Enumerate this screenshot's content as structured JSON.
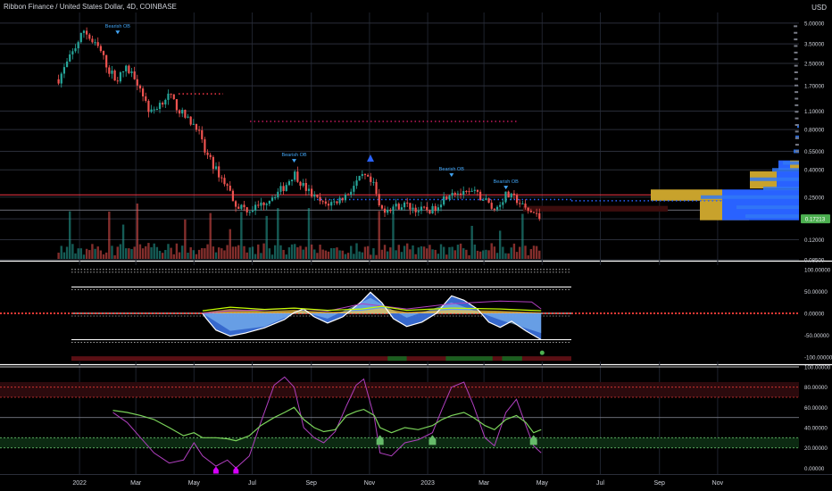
{
  "header": {
    "title": "Ribbon Finance / United States Dollar, 4D, COINBASE",
    "currency": "USD"
  },
  "colors": {
    "bull": "#26a69a",
    "bear": "#ef5350",
    "accent_blue": "#2962ff",
    "zone_gold": "#c8a22c",
    "price_label": "#4caf50",
    "rsi_purple": "#b03fbf",
    "rsi_green": "#7bd35a",
    "red_line": "#f23645"
  },
  "chart_data": [
    {
      "type": "candlestick",
      "title": "Ribbon Finance / United States Dollar, 4D, COINBASE",
      "y_scale": "log",
      "ylim": [
        0.085,
        6.0
      ],
      "y_ticks": [
        "5.00000",
        "3.50000",
        "2.50000",
        "1.70000",
        "1.10000",
        "0.80000",
        "0.55000",
        "0.40000",
        "0.25000",
        "0.12000",
        "0.08500"
      ],
      "x_ticks": [
        "2022",
        "Mar",
        "May",
        "Jul",
        "Sep",
        "Nov",
        "2023",
        "Mar",
        "May",
        "Jul",
        "Sep",
        "Nov"
      ],
      "last_price_label": "0.17213",
      "annotations": [
        "Bearish OB",
        "Bearish OB",
        "Bearish OB",
        "Bearish OB"
      ],
      "close_path": [
        [
          "2021-12-10",
          1.9
        ],
        [
          "2021-12-20",
          2.6
        ],
        [
          "2022-01-01",
          3.8
        ],
        [
          "2022-01-06",
          4.5
        ],
        [
          "2022-01-14",
          3.6
        ],
        [
          "2022-01-22",
          3.2
        ],
        [
          "2022-02-01",
          2.2
        ],
        [
          "2022-02-10",
          1.9
        ],
        [
          "2022-02-18",
          2.3
        ],
        [
          "2022-02-28",
          2.0
        ],
        [
          "2022-03-08",
          1.5
        ],
        [
          "2022-03-16",
          1.05
        ],
        [
          "2022-03-28",
          1.3
        ],
        [
          "2022-04-05",
          1.45
        ],
        [
          "2022-04-14",
          1.15
        ],
        [
          "2022-04-24",
          0.95
        ],
        [
          "2022-05-04",
          0.85
        ],
        [
          "2022-05-12",
          0.55
        ],
        [
          "2022-05-24",
          0.4
        ],
        [
          "2022-06-05",
          0.3
        ],
        [
          "2022-06-14",
          0.22
        ],
        [
          "2022-06-28",
          0.2
        ],
        [
          "2022-07-10",
          0.22
        ],
        [
          "2022-07-24",
          0.26
        ],
        [
          "2022-08-04",
          0.3
        ],
        [
          "2022-08-14",
          0.38
        ],
        [
          "2022-08-24",
          0.3
        ],
        [
          "2022-09-04",
          0.25
        ],
        [
          "2022-09-14",
          0.22
        ],
        [
          "2022-09-26",
          0.23
        ],
        [
          "2022-10-08",
          0.26
        ],
        [
          "2022-10-18",
          0.32
        ],
        [
          "2022-10-26",
          0.36
        ],
        [
          "2022-11-06",
          0.3
        ],
        [
          "2022-11-12",
          0.2
        ],
        [
          "2022-11-24",
          0.21
        ],
        [
          "2022-12-08",
          0.22
        ],
        [
          "2022-12-22",
          0.2
        ],
        [
          "2023-01-06",
          0.2
        ],
        [
          "2023-01-16",
          0.24
        ],
        [
          "2023-01-26",
          0.28
        ],
        [
          "2023-02-08",
          0.26
        ],
        [
          "2023-02-18",
          0.27
        ],
        [
          "2023-03-02",
          0.24
        ],
        [
          "2023-03-12",
          0.2
        ],
        [
          "2023-03-24",
          0.26
        ],
        [
          "2023-04-04",
          0.24
        ],
        [
          "2023-04-14",
          0.2
        ],
        [
          "2023-04-22",
          0.19
        ],
        [
          "2023-04-30",
          0.17
        ]
      ],
      "price_lines": [
        0.26,
        0.2
      ],
      "volume_profile_bins": [
        {
          "price": 0.85,
          "len": 2
        },
        {
          "price": 0.7,
          "len": 4
        },
        {
          "price": 0.55,
          "len": 6
        },
        {
          "price": 0.45,
          "len": 18
        },
        {
          "price": 0.4,
          "len": 30
        },
        {
          "price": 0.34,
          "len": 55
        },
        {
          "price": 0.29,
          "len": 40
        },
        {
          "price": 0.25,
          "len": 110
        },
        {
          "price": 0.21,
          "len": 70
        },
        {
          "price": 0.18,
          "len": 60
        }
      ]
    },
    {
      "type": "line",
      "title": "",
      "ylim": [
        -110,
        110
      ],
      "y_ticks": [
        "100.00000",
        "50.00000",
        "0.00000",
        "-50.00000",
        "-100.00000"
      ],
      "levels": [
        100,
        60,
        0,
        -60
      ],
      "wave": [
        [
          "2022-05-10",
          0
        ],
        [
          "2022-05-14",
          -12
        ],
        [
          "2022-05-24",
          -38
        ],
        [
          "2022-06-08",
          -52
        ],
        [
          "2022-06-24",
          -45
        ],
        [
          "2022-07-14",
          -33
        ],
        [
          "2022-08-04",
          -14
        ],
        [
          "2022-08-14",
          2
        ],
        [
          "2022-08-24",
          10
        ],
        [
          "2022-09-04",
          -8
        ],
        [
          "2022-09-18",
          -22
        ],
        [
          "2022-10-04",
          -8
        ],
        [
          "2022-10-24",
          28
        ],
        [
          "2022-11-02",
          48
        ],
        [
          "2022-11-14",
          24
        ],
        [
          "2022-11-26",
          -12
        ],
        [
          "2022-12-10",
          -30
        ],
        [
          "2022-12-26",
          -20
        ],
        [
          "2023-01-10",
          0
        ],
        [
          "2023-01-26",
          40
        ],
        [
          "2023-02-08",
          30
        ],
        [
          "2023-02-22",
          10
        ],
        [
          "2023-03-06",
          -20
        ],
        [
          "2023-03-18",
          -32
        ],
        [
          "2023-03-30",
          -18
        ],
        [
          "2023-04-14",
          -40
        ],
        [
          "2023-04-30",
          -60
        ]
      ],
      "signal": [
        [
          "2022-05-10",
          0
        ],
        [
          "2022-06-08",
          -40
        ],
        [
          "2022-07-14",
          -30
        ],
        [
          "2022-08-20",
          5
        ],
        [
          "2022-09-18",
          -12
        ],
        [
          "2022-11-02",
          35
        ],
        [
          "2022-12-10",
          -10
        ],
        [
          "2023-01-26",
          25
        ],
        [
          "2023-03-18",
          -15
        ],
        [
          "2023-04-30",
          -45
        ]
      ],
      "mf_line": [
        [
          "2022-05-10",
          2
        ],
        [
          "2022-06-08",
          10
        ],
        [
          "2022-07-14",
          5
        ],
        [
          "2022-08-14",
          8
        ],
        [
          "2022-09-18",
          3
        ],
        [
          "2022-10-24",
          6
        ],
        [
          "2022-11-14",
          12
        ],
        [
          "2022-12-10",
          3
        ],
        [
          "2023-01-26",
          8
        ],
        [
          "2023-03-18",
          6
        ],
        [
          "2023-04-30",
          2
        ]
      ],
      "purple_line": [
        [
          "2022-05-10",
          0
        ],
        [
          "2022-06-08",
          6
        ],
        [
          "2022-07-14",
          8
        ],
        [
          "2022-08-14",
          12
        ],
        [
          "2022-09-18",
          5
        ],
        [
          "2022-10-24",
          22
        ],
        [
          "2022-11-10",
          18
        ],
        [
          "2022-12-10",
          10
        ],
        [
          "2023-01-26",
          22
        ],
        [
          "2023-03-18",
          28
        ],
        [
          "2023-04-20",
          26
        ],
        [
          "2023-04-30",
          10
        ]
      ]
    },
    {
      "type": "line",
      "title": "",
      "ylim": [
        -5,
        100
      ],
      "y_ticks": [
        "100.00000",
        "80.00000",
        "60.00000",
        "40.00000",
        "20.00000",
        "0.00000"
      ],
      "bands": [
        {
          "from": 70,
          "to": 85
        },
        {
          "from": 20,
          "to": 30
        }
      ],
      "levels": [
        50
      ],
      "series": [
        {
          "name": "",
          "points": [
            [
              "2022-02-05",
              55
            ],
            [
              "2022-02-20",
              45
            ],
            [
              "2022-03-06",
              30
            ],
            [
              "2022-03-20",
              15
            ],
            [
              "2022-04-05",
              5
            ],
            [
              "2022-04-20",
              8
            ],
            [
              "2022-05-01",
              25
            ],
            [
              "2022-05-10",
              12
            ],
            [
              "2022-05-24",
              2
            ],
            [
              "2022-06-05",
              8
            ],
            [
              "2022-06-14",
              0
            ],
            [
              "2022-06-28",
              12
            ],
            [
              "2022-07-10",
              45
            ],
            [
              "2022-07-24",
              82
            ],
            [
              "2022-08-04",
              90
            ],
            [
              "2022-08-14",
              80
            ],
            [
              "2022-08-24",
              40
            ],
            [
              "2022-09-04",
              30
            ],
            [
              "2022-09-14",
              25
            ],
            [
              "2022-09-26",
              36
            ],
            [
              "2022-10-08",
              62
            ],
            [
              "2022-10-18",
              82
            ],
            [
              "2022-10-26",
              88
            ],
            [
              "2022-11-06",
              50
            ],
            [
              "2022-11-12",
              15
            ],
            [
              "2022-11-24",
              12
            ],
            [
              "2022-12-08",
              25
            ],
            [
              "2022-12-22",
              28
            ],
            [
              "2023-01-06",
              35
            ],
            [
              "2023-01-16",
              58
            ],
            [
              "2023-01-26",
              80
            ],
            [
              "2023-02-08",
              85
            ],
            [
              "2023-02-18",
              62
            ],
            [
              "2023-03-02",
              30
            ],
            [
              "2023-03-12",
              22
            ],
            [
              "2023-03-24",
              55
            ],
            [
              "2023-04-04",
              68
            ],
            [
              "2023-04-14",
              42
            ],
            [
              "2023-04-22",
              22
            ],
            [
              "2023-04-30",
              15
            ]
          ]
        },
        {
          "name": "",
          "points": [
            [
              "2022-02-05",
              57
            ],
            [
              "2022-02-20",
              55
            ],
            [
              "2022-03-06",
              52
            ],
            [
              "2022-03-20",
              48
            ],
            [
              "2022-04-05",
              40
            ],
            [
              "2022-04-20",
              32
            ],
            [
              "2022-05-01",
              35
            ],
            [
              "2022-05-10",
              30
            ],
            [
              "2022-05-24",
              30
            ],
            [
              "2022-06-05",
              29
            ],
            [
              "2022-06-14",
              27
            ],
            [
              "2022-06-28",
              32
            ],
            [
              "2022-07-10",
              42
            ],
            [
              "2022-07-24",
              50
            ],
            [
              "2022-08-04",
              55
            ],
            [
              "2022-08-14",
              60
            ],
            [
              "2022-08-24",
              48
            ],
            [
              "2022-09-04",
              40
            ],
            [
              "2022-09-14",
              36
            ],
            [
              "2022-09-26",
              38
            ],
            [
              "2022-10-08",
              52
            ],
            [
              "2022-10-18",
              56
            ],
            [
              "2022-10-26",
              58
            ],
            [
              "2022-11-06",
              52
            ],
            [
              "2022-11-12",
              40
            ],
            [
              "2022-11-24",
              35
            ],
            [
              "2022-12-08",
              40
            ],
            [
              "2022-12-22",
              38
            ],
            [
              "2023-01-06",
              42
            ],
            [
              "2023-01-16",
              48
            ],
            [
              "2023-01-26",
              52
            ],
            [
              "2023-02-08",
              55
            ],
            [
              "2023-02-18",
              50
            ],
            [
              "2023-03-02",
              42
            ],
            [
              "2023-03-12",
              38
            ],
            [
              "2023-03-24",
              48
            ],
            [
              "2023-04-04",
              52
            ],
            [
              "2023-04-14",
              45
            ],
            [
              "2023-04-22",
              35
            ],
            [
              "2023-04-30",
              38
            ]
          ]
        }
      ],
      "markers_up": [
        "2022-11-12",
        "2023-01-06",
        "2023-04-22"
      ],
      "markers_magenta": [
        "2022-05-24",
        "2022-06-14"
      ]
    }
  ]
}
